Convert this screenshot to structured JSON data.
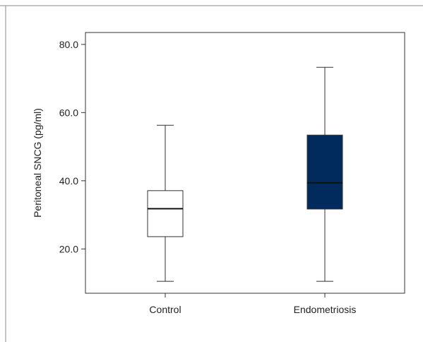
{
  "chart_data": {
    "type": "box",
    "title": "",
    "xlabel": "",
    "ylabel": "Peritoneal SNCG (pg/ml)",
    "ylim": [
      7.0,
      83.5
    ],
    "yticks": [
      20.0,
      40.0,
      60.0,
      80.0
    ],
    "ytick_labels": [
      "20.0",
      "40.0",
      "60.0",
      "80.0"
    ],
    "categories": [
      "Control",
      "Endometriosis"
    ],
    "boxes": [
      {
        "category": "Control",
        "whisker_low": 10.5,
        "q1": 23.6,
        "median": 31.8,
        "q3": 37.1,
        "whisker_high": 56.3,
        "fill": "#ffffff"
      },
      {
        "category": "Endometriosis",
        "whisker_low": 10.5,
        "q1": 31.7,
        "median": 39.4,
        "q3": 53.4,
        "whisker_high": 73.3,
        "fill": "#002b5c"
      }
    ],
    "grid": false,
    "legend": "none"
  },
  "colors": {
    "axis": "#333333",
    "frame": "#888888"
  }
}
